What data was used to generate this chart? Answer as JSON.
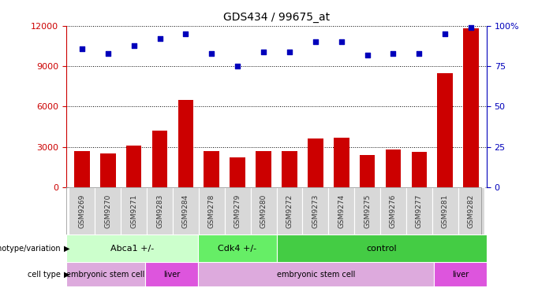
{
  "title": "GDS434 / 99675_at",
  "samples": [
    "GSM9269",
    "GSM9270",
    "GSM9271",
    "GSM9283",
    "GSM9284",
    "GSM9278",
    "GSM9279",
    "GSM9280",
    "GSM9272",
    "GSM9273",
    "GSM9274",
    "GSM9275",
    "GSM9276",
    "GSM9277",
    "GSM9281",
    "GSM9282"
  ],
  "counts": [
    2700,
    2500,
    3100,
    4200,
    6500,
    2700,
    2200,
    2700,
    2700,
    3600,
    3700,
    2400,
    2800,
    2600,
    8500,
    11800
  ],
  "percentiles": [
    86,
    83,
    88,
    92,
    95,
    83,
    75,
    84,
    84,
    90,
    90,
    82,
    83,
    83,
    95,
    99
  ],
  "ylim_left": [
    0,
    12000
  ],
  "ylim_right": [
    0,
    100
  ],
  "yticks_left": [
    0,
    3000,
    6000,
    9000,
    12000
  ],
  "yticks_left_labels": [
    "0",
    "3000",
    "6000",
    "9000",
    "12000"
  ],
  "yticks_right": [
    0,
    25,
    50,
    75,
    100
  ],
  "yticks_right_labels": [
    "0",
    "25",
    "50",
    "75",
    "100%"
  ],
  "bar_color": "#cc0000",
  "dot_color": "#0000bb",
  "genotype_groups": [
    {
      "label": "Abca1 +/-",
      "start": 0,
      "end": 5,
      "color": "#ccffcc"
    },
    {
      "label": "Cdk4 +/-",
      "start": 5,
      "end": 8,
      "color": "#66ee66"
    },
    {
      "label": "control",
      "start": 8,
      "end": 16,
      "color": "#44cc44"
    }
  ],
  "celltype_groups": [
    {
      "label": "embryonic stem cell",
      "start": 0,
      "end": 3,
      "color": "#ddaadd"
    },
    {
      "label": "liver",
      "start": 3,
      "end": 5,
      "color": "#dd55dd"
    },
    {
      "label": "embryonic stem cell",
      "start": 5,
      "end": 14,
      "color": "#ddaadd"
    },
    {
      "label": "liver",
      "start": 14,
      "end": 16,
      "color": "#dd55dd"
    }
  ],
  "background_color": "#ffffff",
  "left_axis_color": "#cc0000",
  "right_axis_color": "#0000bb",
  "tick_color": "#888888"
}
